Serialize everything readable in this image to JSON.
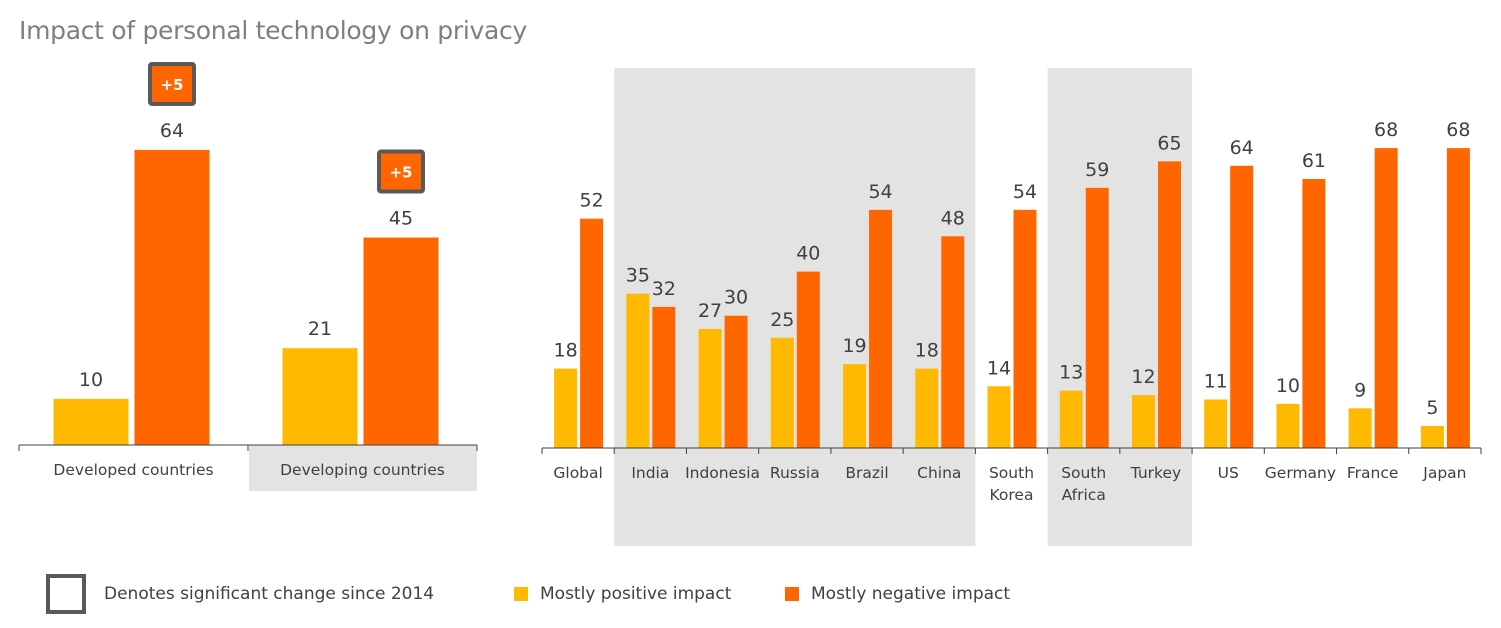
{
  "title": "Impact of personal technology on privacy",
  "colors": {
    "positive": "#FFB900",
    "negative": "#FF6600",
    "shade": "#E3E3E3",
    "badge_border": "#595959",
    "axis": "#404040"
  },
  "legend": {
    "significant_label": "Denotes significant change since 2014",
    "positive_label": "Mostly positive impact",
    "negative_label": "Mostly negative impact"
  },
  "chart_data": [
    {
      "type": "bar",
      "title": "Impact of personal technology on privacy",
      "categories": [
        "Developed countries",
        "Developing countries"
      ],
      "shaded_categories": [
        "Developing countries"
      ],
      "series": [
        {
          "name": "Mostly positive impact",
          "values": [
            10,
            21
          ]
        },
        {
          "name": "Mostly negative impact",
          "values": [
            64,
            45
          ]
        }
      ],
      "annotations": [
        {
          "category": "Developed countries",
          "series": "Mostly negative impact",
          "text": "+5"
        },
        {
          "category": "Developing countries",
          "series": "Mostly negative impact",
          "text": "+5"
        }
      ],
      "xlabel": "",
      "ylabel": "",
      "ylim": [
        0,
        70
      ],
      "grid": false,
      "data_labels": true
    },
    {
      "type": "bar",
      "categories": [
        "Global",
        "India",
        "Indonesia",
        "Russia",
        "Brazil",
        "China",
        "South Korea",
        "South Africa",
        "Turkey",
        "US",
        "Germany",
        "France",
        "Japan"
      ],
      "category_lines": [
        [
          "Global"
        ],
        [
          "India"
        ],
        [
          "Indonesia"
        ],
        [
          "Russia"
        ],
        [
          "Brazil"
        ],
        [
          "China"
        ],
        [
          "South",
          "Korea"
        ],
        [
          "South",
          "Africa"
        ],
        [
          "Turkey"
        ],
        [
          "US"
        ],
        [
          "Germany"
        ],
        [
          "France"
        ],
        [
          "Japan"
        ]
      ],
      "shaded_groups": [
        [
          "India",
          "China"
        ],
        [
          "South Africa",
          "Turkey"
        ]
      ],
      "series": [
        {
          "name": "Mostly positive impact",
          "values": [
            18,
            35,
            27,
            25,
            19,
            18,
            14,
            13,
            12,
            11,
            10,
            9,
            5
          ]
        },
        {
          "name": "Mostly negative impact",
          "values": [
            52,
            32,
            30,
            40,
            54,
            48,
            54,
            59,
            65,
            64,
            61,
            68,
            68
          ]
        }
      ],
      "xlabel": "",
      "ylabel": "",
      "ylim": [
        0,
        70
      ],
      "grid": false,
      "data_labels": true
    }
  ]
}
